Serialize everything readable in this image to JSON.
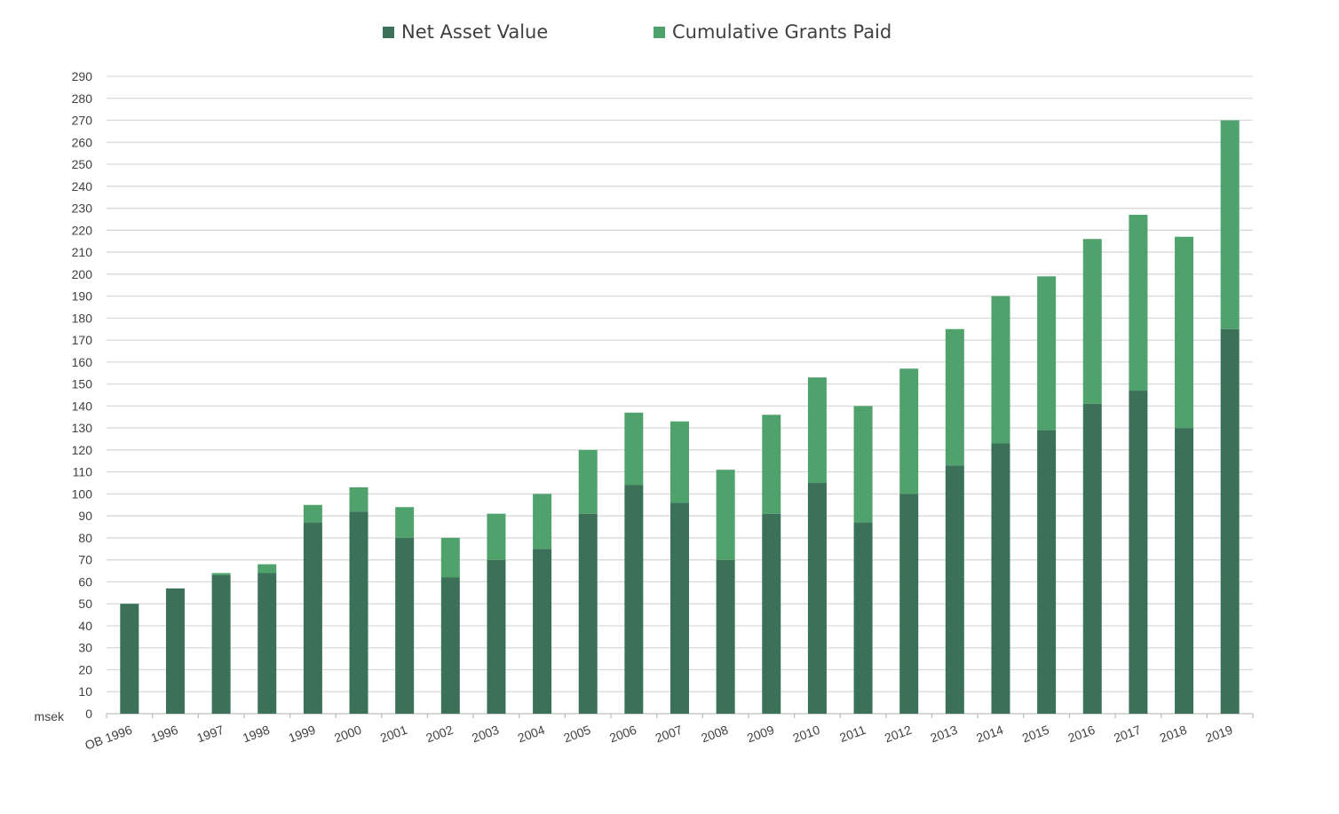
{
  "colors": {
    "net_asset_value": "#3a7158",
    "cumulative_grants_paid": "#50a26c",
    "grid": "#d9d9d9",
    "axis": "#bfbfbf",
    "text": "#404040"
  },
  "legend": {
    "net_asset_value": "Net Asset Value",
    "cumulative_grants_paid": "Cumulative Grants Paid"
  },
  "chart_data": {
    "type": "bar",
    "stacked": true,
    "title": "",
    "xlabel": "",
    "ylabel": "msek",
    "ylim": [
      0,
      290
    ],
    "ytick_step": 10,
    "grid": true,
    "legend_position": "top",
    "categories": [
      "OB 1996",
      "1996",
      "1997",
      "1998",
      "1999",
      "2000",
      "2001",
      "2002",
      "2003",
      "2004",
      "2005",
      "2006",
      "2007",
      "2008",
      "2009",
      "2010",
      "2011",
      "2012",
      "2013",
      "2014",
      "2015",
      "2016",
      "2017",
      "2018",
      "2019"
    ],
    "series": [
      {
        "name": "Net Asset Value",
        "values": [
          50,
          57,
          63,
          64,
          87,
          92,
          80,
          62,
          70,
          75,
          91,
          104,
          96,
          70,
          91,
          105,
          87,
          100,
          113,
          123,
          129,
          141,
          147,
          130,
          175
        ]
      },
      {
        "name": "Cumulative Grants Paid",
        "values": [
          0,
          0,
          1,
          4,
          8,
          11,
          14,
          18,
          21,
          25,
          29,
          33,
          37,
          41,
          45,
          48,
          53,
          57,
          62,
          67,
          70,
          75,
          80,
          87,
          95
        ]
      }
    ]
  }
}
